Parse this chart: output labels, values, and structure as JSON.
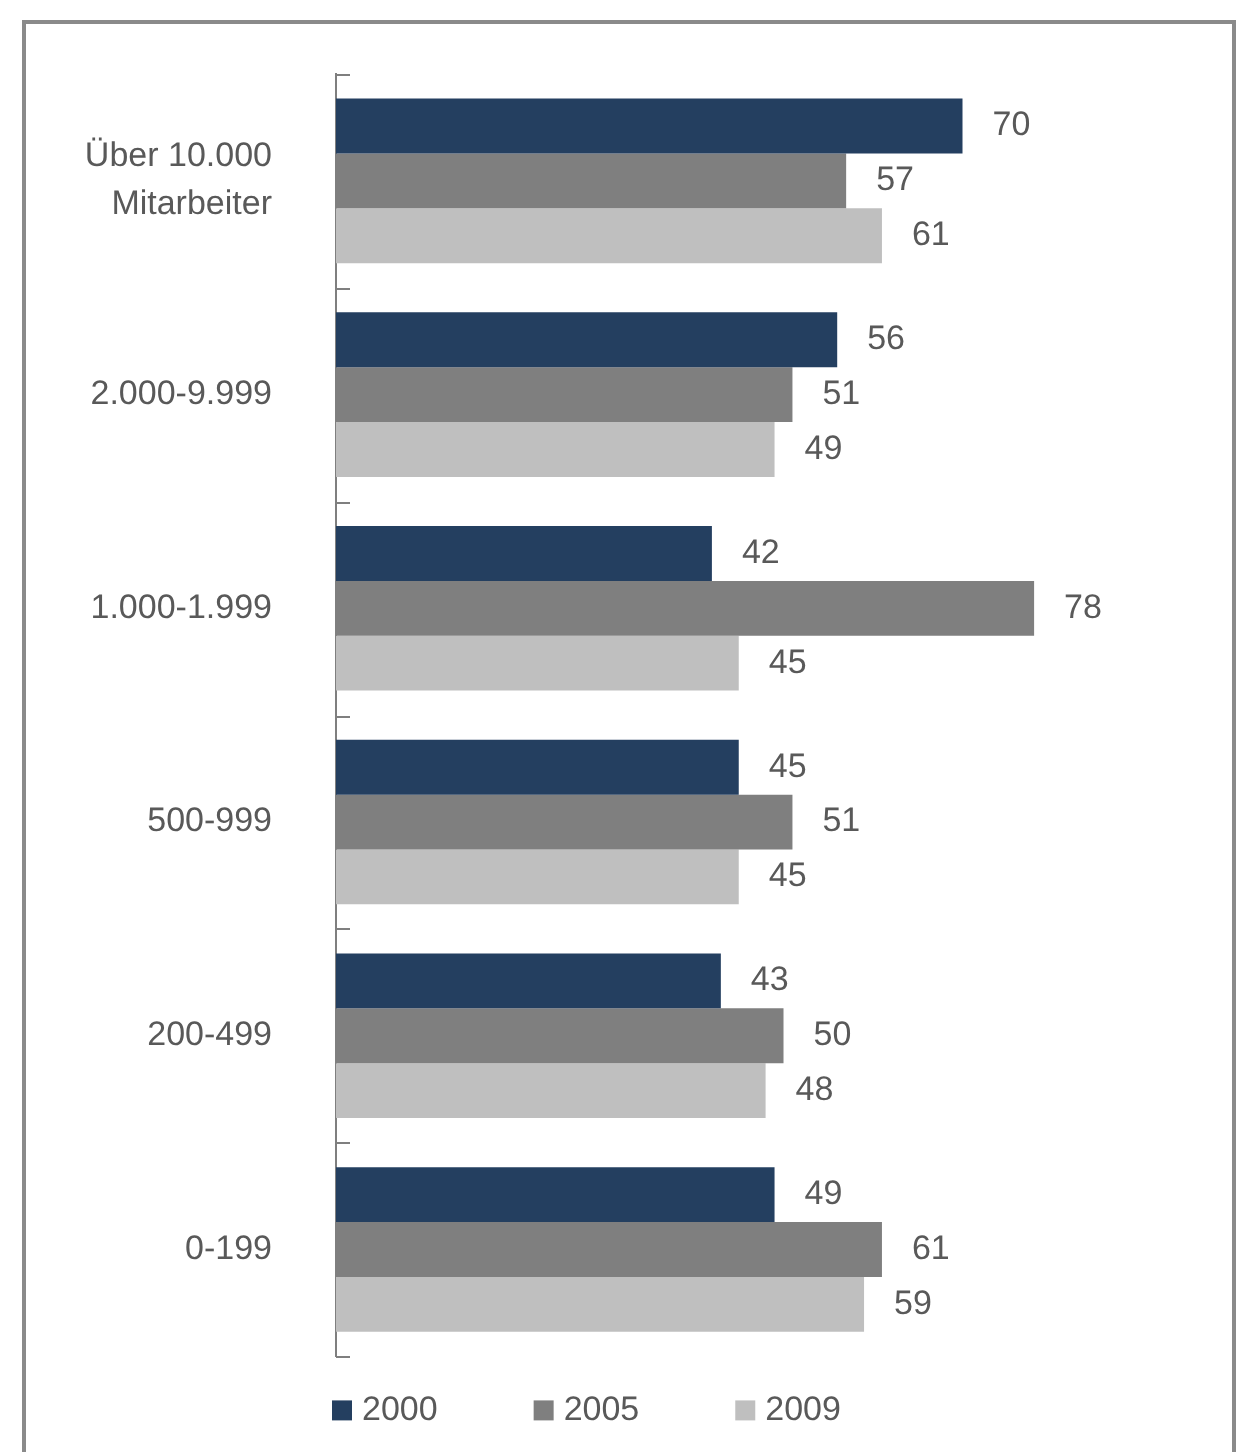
{
  "chart_data": {
    "type": "bar",
    "orientation": "horizontal",
    "categories": [
      "Über 10.000 Mitarbeiter",
      "2.000-9.999",
      "1.000-1.999",
      "500-999",
      "200-499",
      "0-199"
    ],
    "series": [
      {
        "name": "2000",
        "color": "#243f60",
        "values": [
          70,
          56,
          42,
          45,
          43,
          49
        ]
      },
      {
        "name": "2005",
        "color": "#7f7f7f",
        "values": [
          57,
          51,
          78,
          51,
          50,
          61
        ]
      },
      {
        "name": "2009",
        "color": "#bfbfbf",
        "values": [
          61,
          49,
          45,
          45,
          48,
          59
        ]
      }
    ],
    "data_labels": true,
    "legend": "bottom",
    "grid": false,
    "tick_labels": "y"
  }
}
